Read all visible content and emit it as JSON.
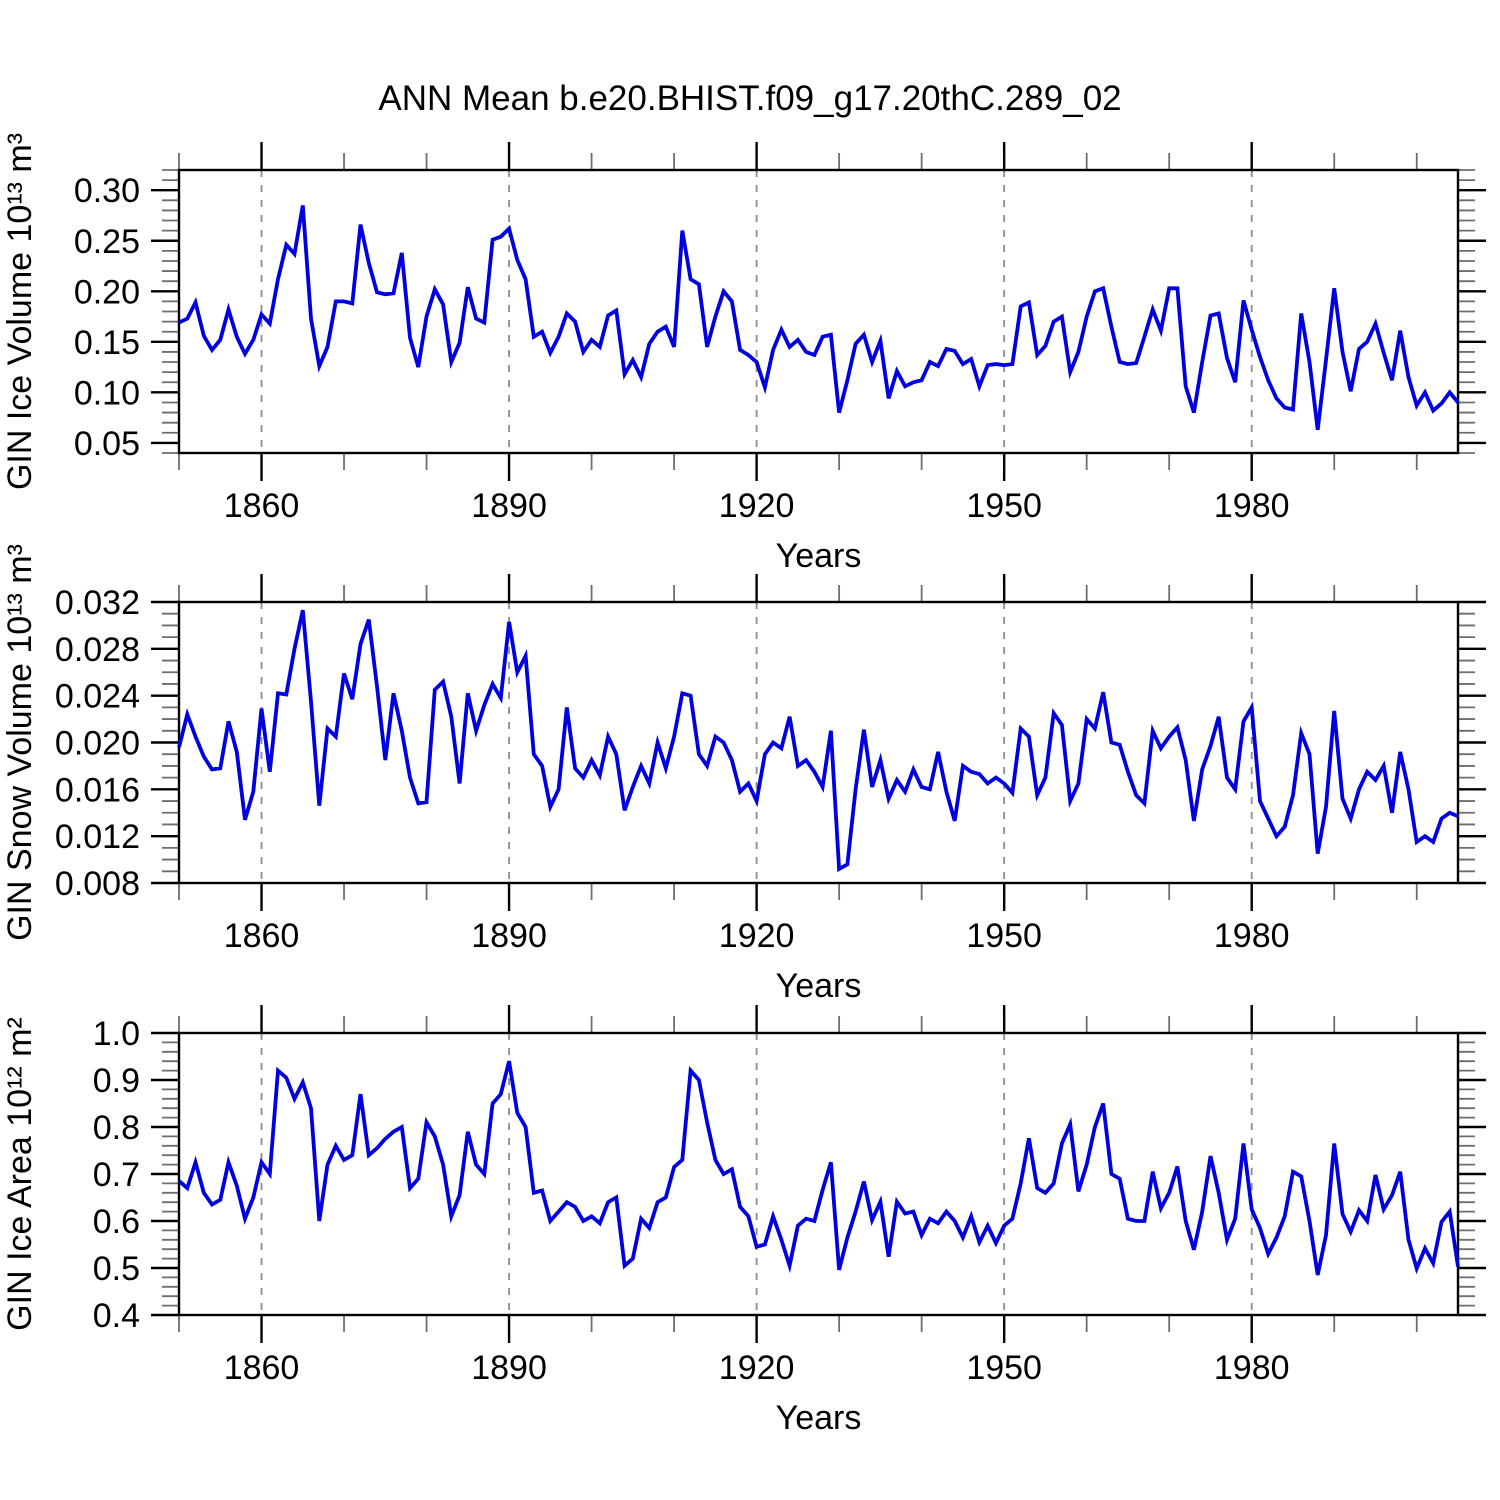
{
  "title": "ANN Mean b.e20.BHIST.f09_g17.20thC.289_02",
  "colors": {
    "line": "#0000e0",
    "grid": "#8c8c8c",
    "frame": "#000000",
    "major_tick": "#000000",
    "minor_tick": "#6e6e6e",
    "background": "#ffffff"
  },
  "x_axis": {
    "label": "Years",
    "xlim": [
      1850,
      2005
    ],
    "major_ticks": [
      1860,
      1890,
      1920,
      1950,
      1980
    ],
    "tick_labels": [
      "1860",
      "1890",
      "1920",
      "1950",
      "1980"
    ],
    "minor_step": 10,
    "grid": "vertical dashed gray lines at major ticks"
  },
  "chart_data": [
    {
      "type": "line",
      "title": "",
      "ylabel": "GIN Ice Volume 10¹³ m³",
      "xlabel": "Years",
      "ylim": [
        0.04,
        0.32
      ],
      "xlim": [
        1850,
        2005
      ],
      "y_major_ticks": [
        0.05,
        0.1,
        0.15,
        0.2,
        0.25,
        0.3
      ],
      "y_tick_labels": [
        "0.05",
        "0.10",
        "0.15",
        "0.20",
        "0.25",
        "0.30"
      ],
      "y_minor_step": 0.01,
      "legend": "none",
      "x_start": 1850,
      "x_step": 1,
      "values": [
        0.169,
        0.173,
        0.189,
        0.156,
        0.142,
        0.152,
        0.182,
        0.155,
        0.138,
        0.152,
        0.177,
        0.168,
        0.212,
        0.246,
        0.237,
        0.285,
        0.173,
        0.126,
        0.145,
        0.19,
        0.19,
        0.188,
        0.266,
        0.228,
        0.199,
        0.197,
        0.198,
        0.238,
        0.154,
        0.125,
        0.175,
        0.202,
        0.187,
        0.13,
        0.149,
        0.204,
        0.173,
        0.169,
        0.251,
        0.254,
        0.262,
        0.231,
        0.212,
        0.155,
        0.16,
        0.139,
        0.155,
        0.178,
        0.17,
        0.14,
        0.152,
        0.145,
        0.176,
        0.181,
        0.118,
        0.132,
        0.115,
        0.148,
        0.16,
        0.165,
        0.145,
        0.26,
        0.212,
        0.207,
        0.145,
        0.175,
        0.2,
        0.19,
        0.142,
        0.137,
        0.13,
        0.105,
        0.142,
        0.162,
        0.145,
        0.152,
        0.14,
        0.137,
        0.155,
        0.157,
        0.08,
        0.112,
        0.148,
        0.157,
        0.13,
        0.151,
        0.094,
        0.121,
        0.106,
        0.11,
        0.112,
        0.13,
        0.126,
        0.143,
        0.141,
        0.128,
        0.133,
        0.106,
        0.127,
        0.128,
        0.127,
        0.128,
        0.185,
        0.189,
        0.137,
        0.146,
        0.17,
        0.175,
        0.12,
        0.14,
        0.175,
        0.2,
        0.203,
        0.165,
        0.13,
        0.128,
        0.129,
        0.155,
        0.182,
        0.161,
        0.203,
        0.203,
        0.106,
        0.08,
        0.13,
        0.176,
        0.178,
        0.134,
        0.11,
        0.191,
        0.162,
        0.135,
        0.112,
        0.094,
        0.085,
        0.083,
        0.178,
        0.13,
        0.063,
        0.132,
        0.203,
        0.14,
        0.101,
        0.143,
        0.15,
        0.168,
        0.139,
        0.112,
        0.161,
        0.115,
        0.087,
        0.1,
        0.082,
        0.089,
        0.1,
        0.09
      ]
    },
    {
      "type": "line",
      "title": "",
      "ylabel": "GIN Snow Volume 10¹³ m³",
      "xlabel": "Years",
      "ylim": [
        0.008,
        0.032
      ],
      "xlim": [
        1850,
        2005
      ],
      "y_major_ticks": [
        0.008,
        0.012,
        0.016,
        0.02,
        0.024,
        0.028,
        0.032
      ],
      "y_tick_labels": [
        "0.008",
        "0.012",
        "0.016",
        "0.020",
        "0.024",
        "0.028",
        "0.032"
      ],
      "y_minor_step": 0.001,
      "legend": "none",
      "x_start": 1850,
      "x_step": 1,
      "values": [
        0.0196,
        0.0224,
        0.0205,
        0.0188,
        0.0177,
        0.0178,
        0.0218,
        0.0192,
        0.0134,
        0.0158,
        0.0229,
        0.0175,
        0.0242,
        0.0241,
        0.028,
        0.0313,
        0.0235,
        0.0146,
        0.0212,
        0.0205,
        0.0259,
        0.0237,
        0.0284,
        0.0305,
        0.0248,
        0.0185,
        0.0242,
        0.021,
        0.017,
        0.0148,
        0.0149,
        0.0245,
        0.0252,
        0.0222,
        0.0165,
        0.0242,
        0.021,
        0.0232,
        0.025,
        0.0238,
        0.0303,
        0.026,
        0.0274,
        0.019,
        0.018,
        0.0145,
        0.016,
        0.023,
        0.0178,
        0.017,
        0.0185,
        0.0172,
        0.0205,
        0.019,
        0.0142,
        0.0162,
        0.018,
        0.0165,
        0.02,
        0.0178,
        0.0205,
        0.0242,
        0.024,
        0.019,
        0.018,
        0.0205,
        0.02,
        0.0185,
        0.0158,
        0.0165,
        0.015,
        0.019,
        0.02,
        0.0195,
        0.0222,
        0.018,
        0.0185,
        0.0175,
        0.0162,
        0.021,
        0.0092,
        0.0096,
        0.016,
        0.0211,
        0.0162,
        0.0185,
        0.0152,
        0.0168,
        0.0158,
        0.0177,
        0.0162,
        0.016,
        0.0192,
        0.0158,
        0.0133,
        0.018,
        0.0175,
        0.0173,
        0.0165,
        0.017,
        0.0165,
        0.0157,
        0.0212,
        0.0205,
        0.0155,
        0.017,
        0.0225,
        0.0215,
        0.015,
        0.0165,
        0.022,
        0.0212,
        0.0243,
        0.02,
        0.0198,
        0.0175,
        0.0155,
        0.0148,
        0.021,
        0.0195,
        0.0205,
        0.0213,
        0.0185,
        0.0133,
        0.0177,
        0.0197,
        0.0222,
        0.017,
        0.016,
        0.0218,
        0.023,
        0.015,
        0.0135,
        0.012,
        0.0128,
        0.0155,
        0.0208,
        0.019,
        0.0105,
        0.0145,
        0.0227,
        0.0152,
        0.0135,
        0.016,
        0.0175,
        0.0168,
        0.018,
        0.014,
        0.0192,
        0.016,
        0.0115,
        0.012,
        0.0115,
        0.0135,
        0.014,
        0.0137
      ]
    },
    {
      "type": "line",
      "title": "",
      "ylabel": "GIN Ice Area 10¹² m²",
      "xlabel": "Years",
      "ylim": [
        0.4,
        1.0
      ],
      "xlim": [
        1850,
        2005
      ],
      "y_major_ticks": [
        0.4,
        0.5,
        0.6,
        0.7,
        0.8,
        0.9,
        1.0
      ],
      "y_tick_labels": [
        "0.4",
        "0.5",
        "0.6",
        "0.7",
        "0.8",
        "0.9",
        "1.0"
      ],
      "y_minor_step": 0.02,
      "legend": "none",
      "x_start": 1850,
      "x_step": 1,
      "values": [
        0.685,
        0.67,
        0.725,
        0.66,
        0.635,
        0.645,
        0.725,
        0.675,
        0.605,
        0.65,
        0.725,
        0.7,
        0.92,
        0.905,
        0.86,
        0.895,
        0.84,
        0.6,
        0.72,
        0.76,
        0.73,
        0.74,
        0.87,
        0.74,
        0.755,
        0.775,
        0.79,
        0.8,
        0.67,
        0.69,
        0.81,
        0.78,
        0.72,
        0.61,
        0.655,
        0.79,
        0.72,
        0.7,
        0.85,
        0.87,
        0.94,
        0.83,
        0.8,
        0.66,
        0.665,
        0.6,
        0.62,
        0.64,
        0.63,
        0.6,
        0.61,
        0.595,
        0.64,
        0.65,
        0.505,
        0.52,
        0.605,
        0.585,
        0.64,
        0.65,
        0.715,
        0.73,
        0.92,
        0.9,
        0.81,
        0.73,
        0.7,
        0.71,
        0.63,
        0.61,
        0.545,
        0.55,
        0.61,
        0.56,
        0.505,
        0.59,
        0.605,
        0.6,
        0.666,
        0.725,
        0.496,
        0.565,
        0.62,
        0.684,
        0.602,
        0.641,
        0.524,
        0.641,
        0.616,
        0.62,
        0.57,
        0.605,
        0.595,
        0.62,
        0.6,
        0.565,
        0.61,
        0.555,
        0.59,
        0.553,
        0.59,
        0.605,
        0.68,
        0.776,
        0.67,
        0.66,
        0.68,
        0.765,
        0.806,
        0.663,
        0.72,
        0.8,
        0.85,
        0.7,
        0.69,
        0.605,
        0.6,
        0.6,
        0.705,
        0.627,
        0.66,
        0.716,
        0.6,
        0.539,
        0.62,
        0.738,
        0.66,
        0.56,
        0.605,
        0.765,
        0.625,
        0.585,
        0.53,
        0.565,
        0.61,
        0.705,
        0.695,
        0.6,
        0.485,
        0.57,
        0.765,
        0.615,
        0.577,
        0.623,
        0.6,
        0.698,
        0.625,
        0.655,
        0.705,
        0.56,
        0.499,
        0.542,
        0.51,
        0.598,
        0.62,
        0.503
      ]
    }
  ]
}
